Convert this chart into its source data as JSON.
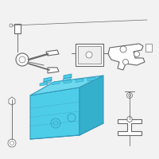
{
  "bg_color": "#f2f2f2",
  "battery_fill": "#4ecde8",
  "battery_top_fill": "#6dd8ee",
  "battery_right_fill": "#35b0cc",
  "battery_stroke": "#3399bb",
  "part_stroke": "#666666",
  "part_fill": "#ffffff",
  "part_fill2": "#eeeeee",
  "lw": 0.8
}
